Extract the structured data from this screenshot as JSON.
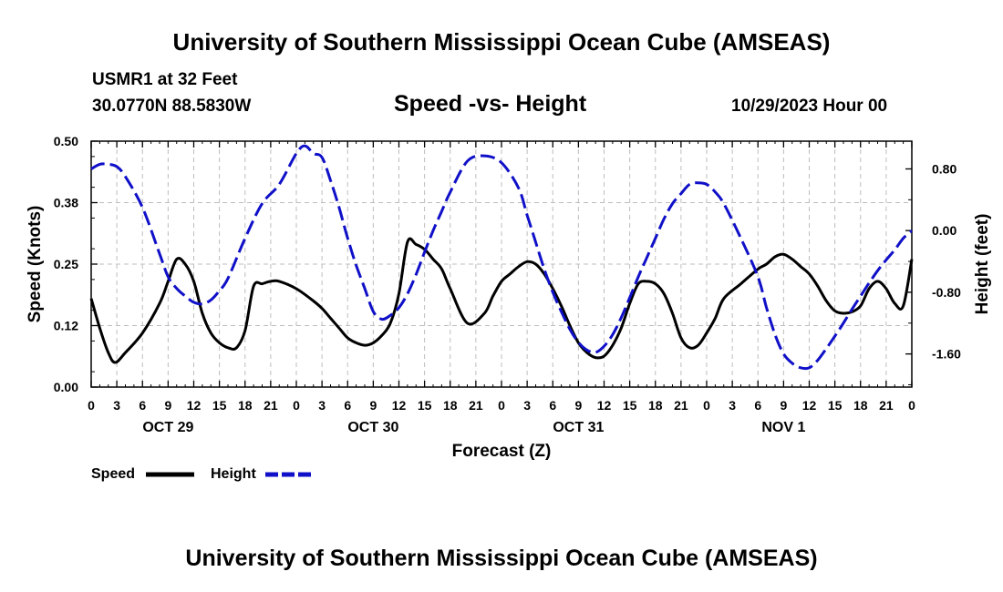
{
  "header": {
    "title": "University of Southern Mississippi Ocean Cube (AMSEAS)",
    "station": "USMR1 at 32 Feet",
    "coordinates": "30.0770N  88.5830W",
    "plot_title": "Speed -vs- Height",
    "forecast_time": "10/29/2023 Hour 00"
  },
  "footer": {
    "title": "University of Southern Mississippi Ocean Cube (AMSEAS)"
  },
  "legend": {
    "speed_label": "Speed",
    "height_label": "Height"
  },
  "colors": {
    "speed": "#000000",
    "height": "#1010c8",
    "grid": "#bdbdbd"
  },
  "chart_data": {
    "type": "line",
    "title": "Speed -vs- Height",
    "xlabel": "Forecast (Z)",
    "ylabel": "Speed (Knots)",
    "y2label": "Height (feet)",
    "xlim": [
      0,
      96
    ],
    "ylim": [
      0,
      0.5
    ],
    "y2lim": [
      -2.03,
      1.16
    ],
    "grid": true,
    "legend_position": "bottom-left",
    "x_tick_labels": [
      "0",
      "3",
      "6",
      "9",
      "12",
      "15",
      "18",
      "21",
      "0",
      "3",
      "6",
      "9",
      "12",
      "15",
      "18",
      "21",
      "0",
      "3",
      "6",
      "9",
      "12",
      "15",
      "18",
      "21",
      "0",
      "3",
      "6",
      "9",
      "12",
      "15",
      "18",
      "21",
      "0"
    ],
    "y_ticks": [
      {
        "value": 0.0,
        "label": "0.00"
      },
      {
        "value": 0.125,
        "label": "0.12"
      },
      {
        "value": 0.25,
        "label": "0.25"
      },
      {
        "value": 0.375,
        "label": "0.38"
      },
      {
        "value": 0.5,
        "label": "0.50"
      }
    ],
    "y2_ticks": [
      {
        "value": 0.8,
        "label": "0.80"
      },
      {
        "value": 0.0,
        "label": "0.00"
      },
      {
        "value": -0.8,
        "label": "-0.80"
      },
      {
        "value": -1.6,
        "label": "-1.60"
      }
    ],
    "day_labels": [
      {
        "x": 9,
        "label": "OCT 29"
      },
      {
        "x": 33,
        "label": "OCT 30"
      },
      {
        "x": 57,
        "label": "OCT 31"
      },
      {
        "x": 81,
        "label": "NOV 1"
      }
    ],
    "series": [
      {
        "name": "Speed",
        "axis": "left",
        "style": "solid",
        "x": [
          0,
          1,
          2,
          2.8,
          4,
          6,
          8,
          9,
          10,
          11,
          12,
          13,
          14,
          15,
          16,
          17,
          18,
          19,
          20,
          21,
          22,
          24,
          26,
          27,
          28,
          29,
          30,
          31,
          32,
          33,
          34,
          35,
          36,
          37,
          38,
          39,
          40,
          41,
          42,
          44,
          46,
          47,
          48,
          49,
          50,
          51,
          52,
          53,
          54,
          55,
          56,
          57,
          58,
          59,
          60,
          61,
          62,
          63,
          64,
          65,
          66,
          67,
          68,
          69,
          70,
          71,
          72,
          73,
          74,
          76,
          78,
          79,
          80,
          81,
          82,
          83,
          84,
          85,
          86,
          87,
          88,
          89,
          90,
          91,
          92,
          93,
          94,
          95,
          96
        ],
        "values": [
          0.18,
          0.12,
          0.07,
          0.05,
          0.07,
          0.11,
          0.17,
          0.215,
          0.26,
          0.25,
          0.215,
          0.15,
          0.11,
          0.09,
          0.08,
          0.08,
          0.115,
          0.205,
          0.21,
          0.215,
          0.215,
          0.2,
          0.175,
          0.16,
          0.14,
          0.12,
          0.1,
          0.09,
          0.085,
          0.09,
          0.105,
          0.13,
          0.19,
          0.295,
          0.29,
          0.28,
          0.26,
          0.24,
          0.2,
          0.13,
          0.15,
          0.185,
          0.215,
          0.23,
          0.245,
          0.255,
          0.25,
          0.23,
          0.2,
          0.165,
          0.125,
          0.09,
          0.07,
          0.06,
          0.063,
          0.085,
          0.12,
          0.17,
          0.21,
          0.215,
          0.21,
          0.19,
          0.15,
          0.1,
          0.08,
          0.085,
          0.11,
          0.14,
          0.18,
          0.21,
          0.24,
          0.25,
          0.265,
          0.27,
          0.26,
          0.245,
          0.23,
          0.205,
          0.175,
          0.155,
          0.15,
          0.153,
          0.165,
          0.2,
          0.215,
          0.2,
          0.17,
          0.165,
          0.26
        ]
      },
      {
        "name": "Height",
        "axis": "right",
        "style": "dashed",
        "x": [
          0,
          1,
          2,
          3,
          4,
          6,
          8,
          9,
          10,
          11,
          12,
          13,
          14,
          15,
          16,
          18,
          20,
          22,
          24,
          25,
          26,
          27,
          28,
          29,
          30,
          31,
          32,
          33,
          34,
          35,
          36,
          37,
          38,
          39,
          40,
          41,
          42,
          44,
          46,
          48,
          50,
          51,
          52,
          53,
          54,
          55,
          56,
          57,
          58,
          59,
          60,
          61,
          62,
          63,
          64,
          65,
          66,
          67,
          68,
          69,
          70,
          71,
          72,
          73,
          74,
          76,
          78,
          79,
          80,
          81,
          82,
          83,
          84,
          85,
          86,
          87,
          88,
          89,
          90,
          91,
          92,
          93,
          94,
          95,
          96
        ],
        "values": [
          0.8,
          0.86,
          0.86,
          0.83,
          0.7,
          0.3,
          -0.3,
          -0.6,
          -0.75,
          -0.85,
          -0.93,
          -0.95,
          -0.9,
          -0.78,
          -0.62,
          -0.1,
          0.35,
          0.6,
          1.0,
          1.1,
          1.0,
          0.95,
          0.65,
          0.3,
          -0.1,
          -0.45,
          -0.75,
          -1.05,
          -1.15,
          -1.1,
          -1.0,
          -0.82,
          -0.57,
          -0.28,
          0.0,
          0.25,
          0.5,
          0.9,
          0.97,
          0.88,
          0.55,
          0.2,
          -0.15,
          -0.5,
          -0.8,
          -1.05,
          -1.28,
          -1.45,
          -1.55,
          -1.58,
          -1.5,
          -1.35,
          -1.13,
          -0.87,
          -0.6,
          -0.35,
          -0.1,
          0.15,
          0.35,
          0.48,
          0.6,
          0.62,
          0.6,
          0.5,
          0.35,
          -0.1,
          -0.6,
          -1.0,
          -1.35,
          -1.6,
          -1.72,
          -1.78,
          -1.78,
          -1.68,
          -1.53,
          -1.37,
          -1.2,
          -1.02,
          -0.85,
          -0.68,
          -0.52,
          -0.38,
          -0.25,
          -0.1,
          0.0
        ]
      }
    ]
  }
}
